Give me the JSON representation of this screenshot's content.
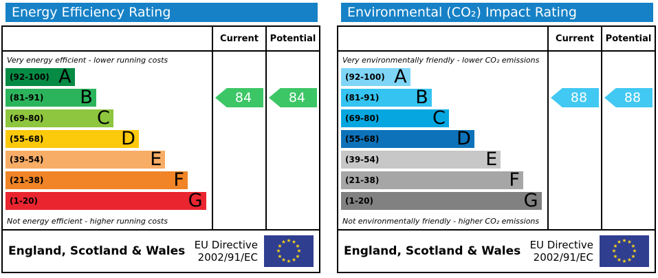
{
  "theme": {
    "header_bg": "#1681c6",
    "eu_flag": {
      "bg": "#2f3e8f",
      "star": "#ffd617"
    }
  },
  "panels": [
    {
      "title": "Energy Efficiency Rating",
      "columns": {
        "current": "Current",
        "potential": "Potential"
      },
      "top_caption": "Very energy efficient - lower running costs",
      "bottom_caption": "Not energy efficient - higher running costs",
      "bands": [
        {
          "range": "(92-100)",
          "letter": "A",
          "color": "#068b44",
          "width_pct": 34
        },
        {
          "range": "(81-91)",
          "letter": "B",
          "color": "#2cb45c",
          "width_pct": 44.5
        },
        {
          "range": "(69-80)",
          "letter": "C",
          "color": "#8ec63f",
          "width_pct": 53
        },
        {
          "range": "(55-68)",
          "letter": "D",
          "color": "#fcc90b",
          "width_pct": 65.5
        },
        {
          "range": "(39-54)",
          "letter": "E",
          "color": "#f8ad67",
          "width_pct": 78.5
        },
        {
          "range": "(21-38)",
          "letter": "F",
          "color": "#f08426",
          "width_pct": 89.5
        },
        {
          "range": "(1-20)",
          "letter": "G",
          "color": "#ea2530",
          "width_pct": 98.5
        }
      ],
      "arrows": {
        "color": "#3cc666",
        "current": {
          "value": "84",
          "band_index": 1
        },
        "potential": {
          "value": "84",
          "band_index": 1
        }
      },
      "footer": {
        "region": "England, Scotland & Wales",
        "directive_line1": "EU Directive",
        "directive_line2": "2002/91/EC"
      }
    },
    {
      "title": "Environmental (CO₂) Impact Rating",
      "columns": {
        "current": "Current",
        "potential": "Potential"
      },
      "top_caption": "Very environmentally friendly - lower CO₂ emissions",
      "bottom_caption": "Not environmentally friendly - higher CO₂ emissions",
      "bands": [
        {
          "range": "(92-100)",
          "letter": "A",
          "color": "#7fd5f6",
          "width_pct": 34
        },
        {
          "range": "(81-91)",
          "letter": "B",
          "color": "#35c3f1",
          "width_pct": 44.5
        },
        {
          "range": "(69-80)",
          "letter": "C",
          "color": "#06a7e0",
          "width_pct": 53
        },
        {
          "range": "(55-68)",
          "letter": "D",
          "color": "#0d72b9",
          "width_pct": 65.5
        },
        {
          "range": "(39-54)",
          "letter": "E",
          "color": "#c7c7c7",
          "width_pct": 78.5
        },
        {
          "range": "(21-38)",
          "letter": "F",
          "color": "#a6a6a6",
          "width_pct": 89.5
        },
        {
          "range": "(1-20)",
          "letter": "G",
          "color": "#818181",
          "width_pct": 98.5
        }
      ],
      "arrows": {
        "color": "#41c8f3",
        "current": {
          "value": "88",
          "band_index": 1
        },
        "potential": {
          "value": "88",
          "band_index": 1
        }
      },
      "footer": {
        "region": "England, Scotland & Wales",
        "directive_line1": "EU Directive",
        "directive_line2": "2002/91/EC"
      }
    }
  ],
  "chart_data": [
    {
      "type": "bar",
      "title": "Energy Efficiency Rating",
      "categories": [
        "A (92-100)",
        "B (81-91)",
        "C (69-80)",
        "D (55-68)",
        "E (39-54)",
        "F (21-38)",
        "G (1-20)"
      ],
      "series": [
        {
          "name": "Current",
          "values": [
            84
          ],
          "band": "B"
        },
        {
          "name": "Potential",
          "values": [
            84
          ],
          "band": "B"
        }
      ],
      "ylim": [
        1,
        100
      ],
      "legend_position": "table-columns-right"
    },
    {
      "type": "bar",
      "title": "Environmental (CO₂) Impact Rating",
      "categories": [
        "A (92-100)",
        "B (81-91)",
        "C (69-80)",
        "D (55-68)",
        "E (39-54)",
        "F (21-38)",
        "G (1-20)"
      ],
      "series": [
        {
          "name": "Current",
          "values": [
            88
          ],
          "band": "B"
        },
        {
          "name": "Potential",
          "values": [
            88
          ],
          "band": "B"
        }
      ],
      "ylim": [
        1,
        100
      ],
      "legend_position": "table-columns-right"
    }
  ]
}
